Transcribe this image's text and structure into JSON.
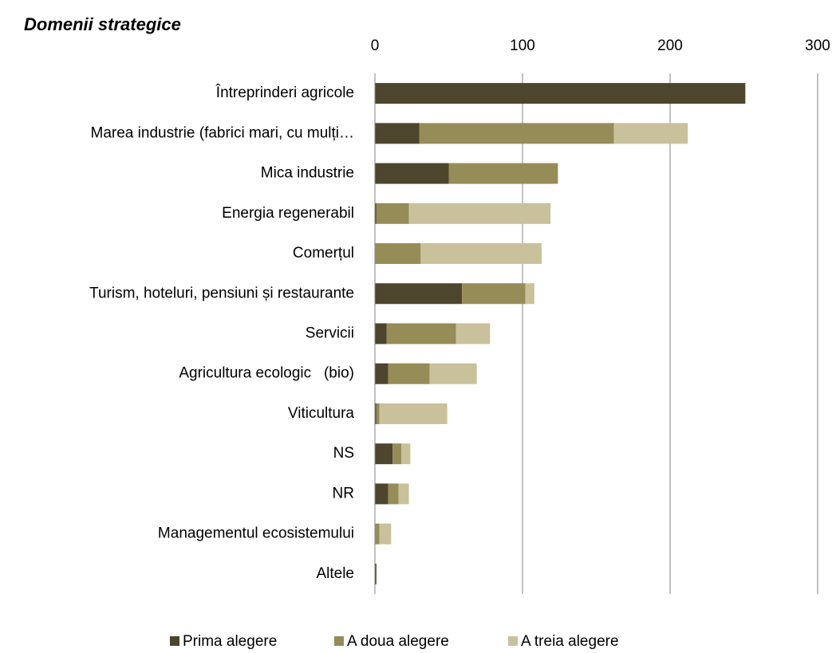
{
  "chart_data": {
    "type": "bar",
    "orientation": "horizontal",
    "stacked": true,
    "title": "Domenii strategice",
    "categories": [
      "Întreprinderi agricole",
      "Marea industrie (fabrici mari, cu mulți…",
      "Mica industrie",
      "Energia regenerabil",
      "Comerțul",
      "Turism, hoteluri, pensiuni și restaurante",
      "Servicii",
      "Agricultura ecologic   (bio)",
      "Viticultura",
      "NS",
      "NR",
      "Managementul ecosistemului",
      "Altele"
    ],
    "series": [
      {
        "name": "Prima alegere",
        "color": "#4d452c",
        "values": [
          251,
          30,
          50,
          1,
          0,
          59,
          8,
          9,
          1,
          12,
          9,
          0,
          1
        ]
      },
      {
        "name": "A doua alegere",
        "color": "#968c58",
        "values": [
          0,
          132,
          74,
          22,
          31,
          43,
          47,
          28,
          2,
          6,
          7,
          3,
          0
        ]
      },
      {
        "name": "A treia alegere",
        "color": "#c9c19b",
        "values": [
          0,
          50,
          0,
          96,
          82,
          6,
          23,
          32,
          46,
          6,
          7,
          8,
          0
        ]
      }
    ],
    "xlim": [
      0,
      300
    ],
    "xticks": [
      0,
      100,
      200,
      300
    ],
    "grid": true,
    "legend": "bottom"
  }
}
